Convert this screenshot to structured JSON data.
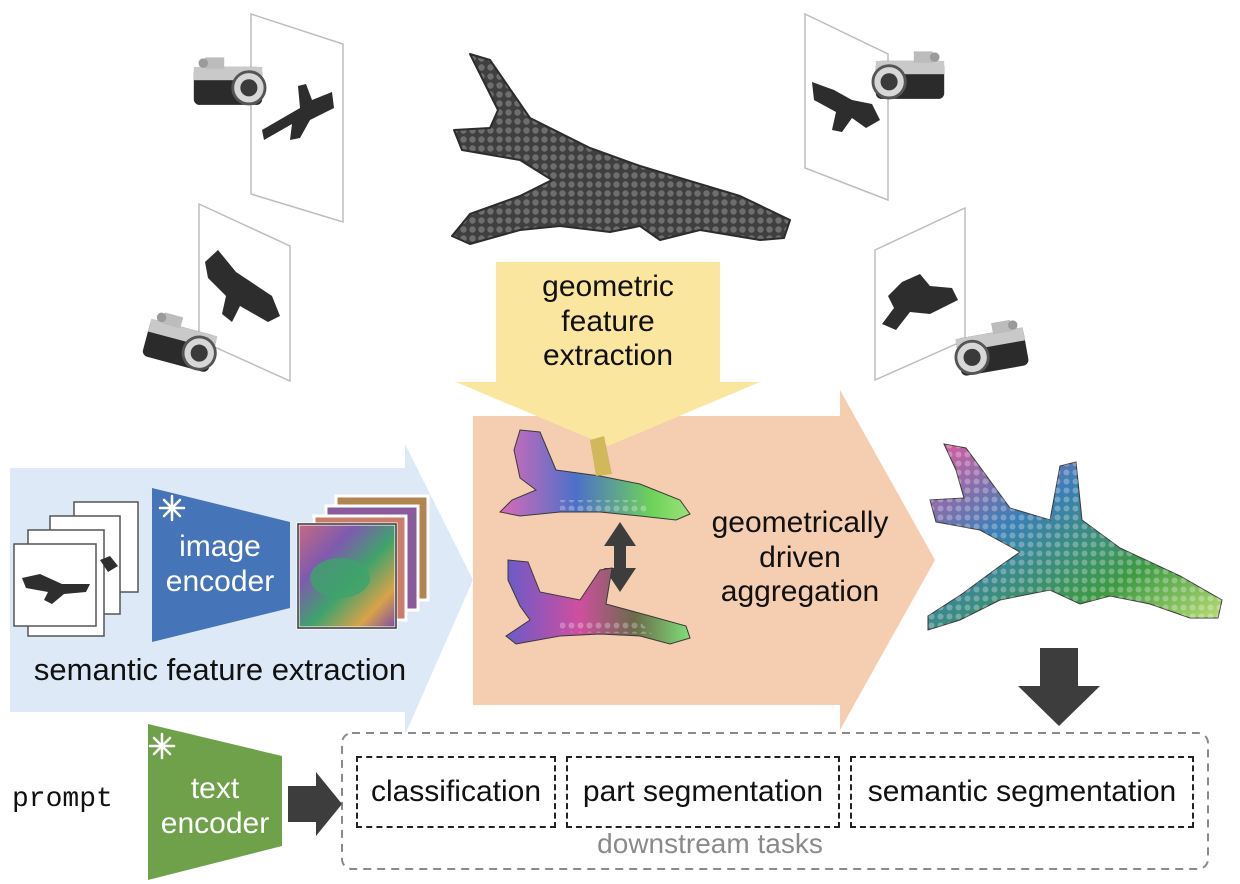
{
  "top": {
    "geometric_label": [
      "geometric",
      "feature",
      "extraction"
    ]
  },
  "semantic": {
    "image_encoder_label": [
      "image",
      "encoder"
    ],
    "caption": "semantic feature extraction"
  },
  "aggregation": {
    "label": [
      "geometrically",
      "driven",
      "aggregation"
    ]
  },
  "text_branch": {
    "prompt": "prompt",
    "text_encoder_label": [
      "text",
      "encoder"
    ]
  },
  "downstream": {
    "tasks": [
      "classification",
      "part segmentation",
      "semantic segmentation"
    ],
    "caption": "downstream tasks"
  },
  "colors": {
    "geometric_arrow": "#fbe6a0",
    "aggregation_arrow": "#f5cdb0",
    "semantic_arrow": "#dde9f6",
    "image_encoder": "#4674b8",
    "text_encoder": "#6fa14b",
    "dark_arrow": "#3d3d3d",
    "airplane": "#4a4a4a"
  },
  "icons": [
    "camera-icon",
    "snowflake-icon",
    "double-arrow-icon",
    "down-arrow-icon",
    "right-arrow-icon"
  ]
}
